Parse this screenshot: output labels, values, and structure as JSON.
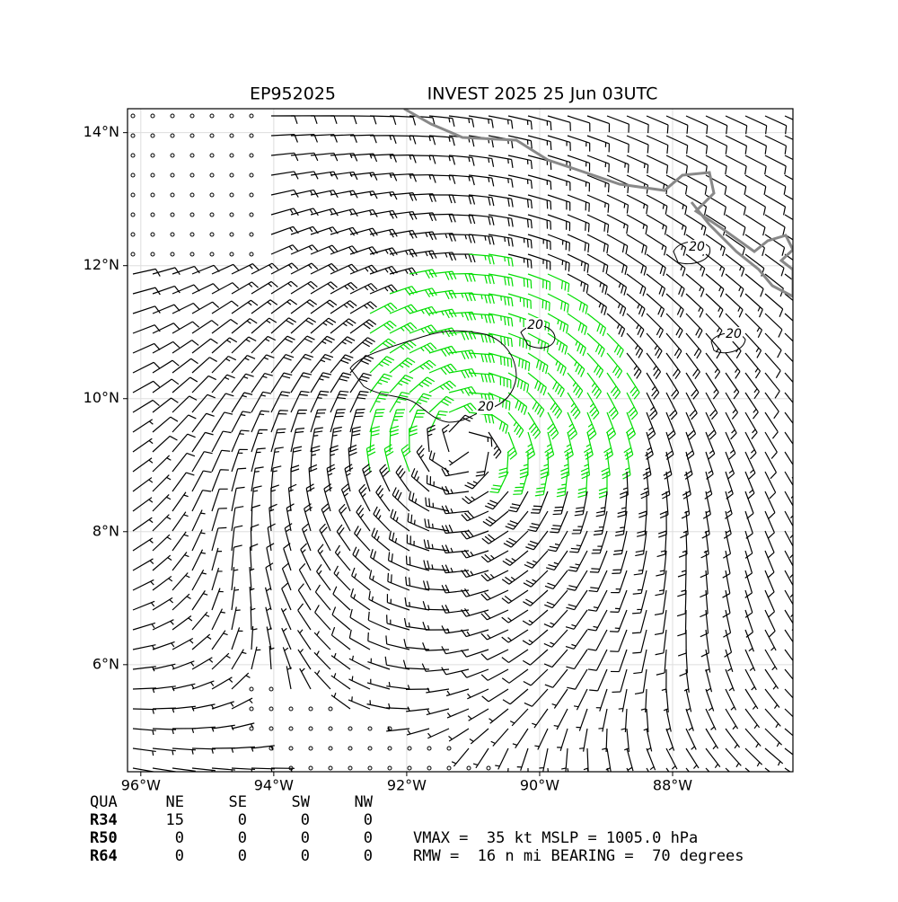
{
  "title_left": "EP952025",
  "title_right": "INVEST 2025 25 Jun 03UTC",
  "map": {
    "lon_range": [
      -96.2,
      -86.19
    ],
    "lat_range": [
      4.39,
      14.36
    ],
    "lon_ticks": [
      {
        "value": -96,
        "label": "96°W"
      },
      {
        "value": -94,
        "label": "94°W"
      },
      {
        "value": -92,
        "label": "92°W"
      },
      {
        "value": -90,
        "label": "90°W"
      },
      {
        "value": -88,
        "label": "88°W"
      }
    ],
    "lat_ticks": [
      {
        "value": 14,
        "label": "14°N"
      },
      {
        "value": 12,
        "label": "12°N"
      },
      {
        "value": 10,
        "label": "10°N"
      },
      {
        "value": 8,
        "label": "8°N"
      },
      {
        "value": 6,
        "label": "6°N"
      }
    ],
    "contour_labels": [
      "20",
      "20",
      "20",
      "20"
    ]
  },
  "table": {
    "header": [
      "QUA",
      "NE",
      "SE",
      "SW",
      "NW"
    ],
    "rows": [
      [
        "R34",
        "15",
        "0",
        "0",
        "0"
      ],
      [
        "R50",
        "0",
        "0",
        "0",
        "0"
      ],
      [
        "R64",
        "0",
        "0",
        "0",
        "0"
      ]
    ]
  },
  "stats": [
    "VMAX =  35 kt MSLP = 1005.0 hPa",
    "RMW =  16 n mi BEARING =  70 degrees"
  ]
}
